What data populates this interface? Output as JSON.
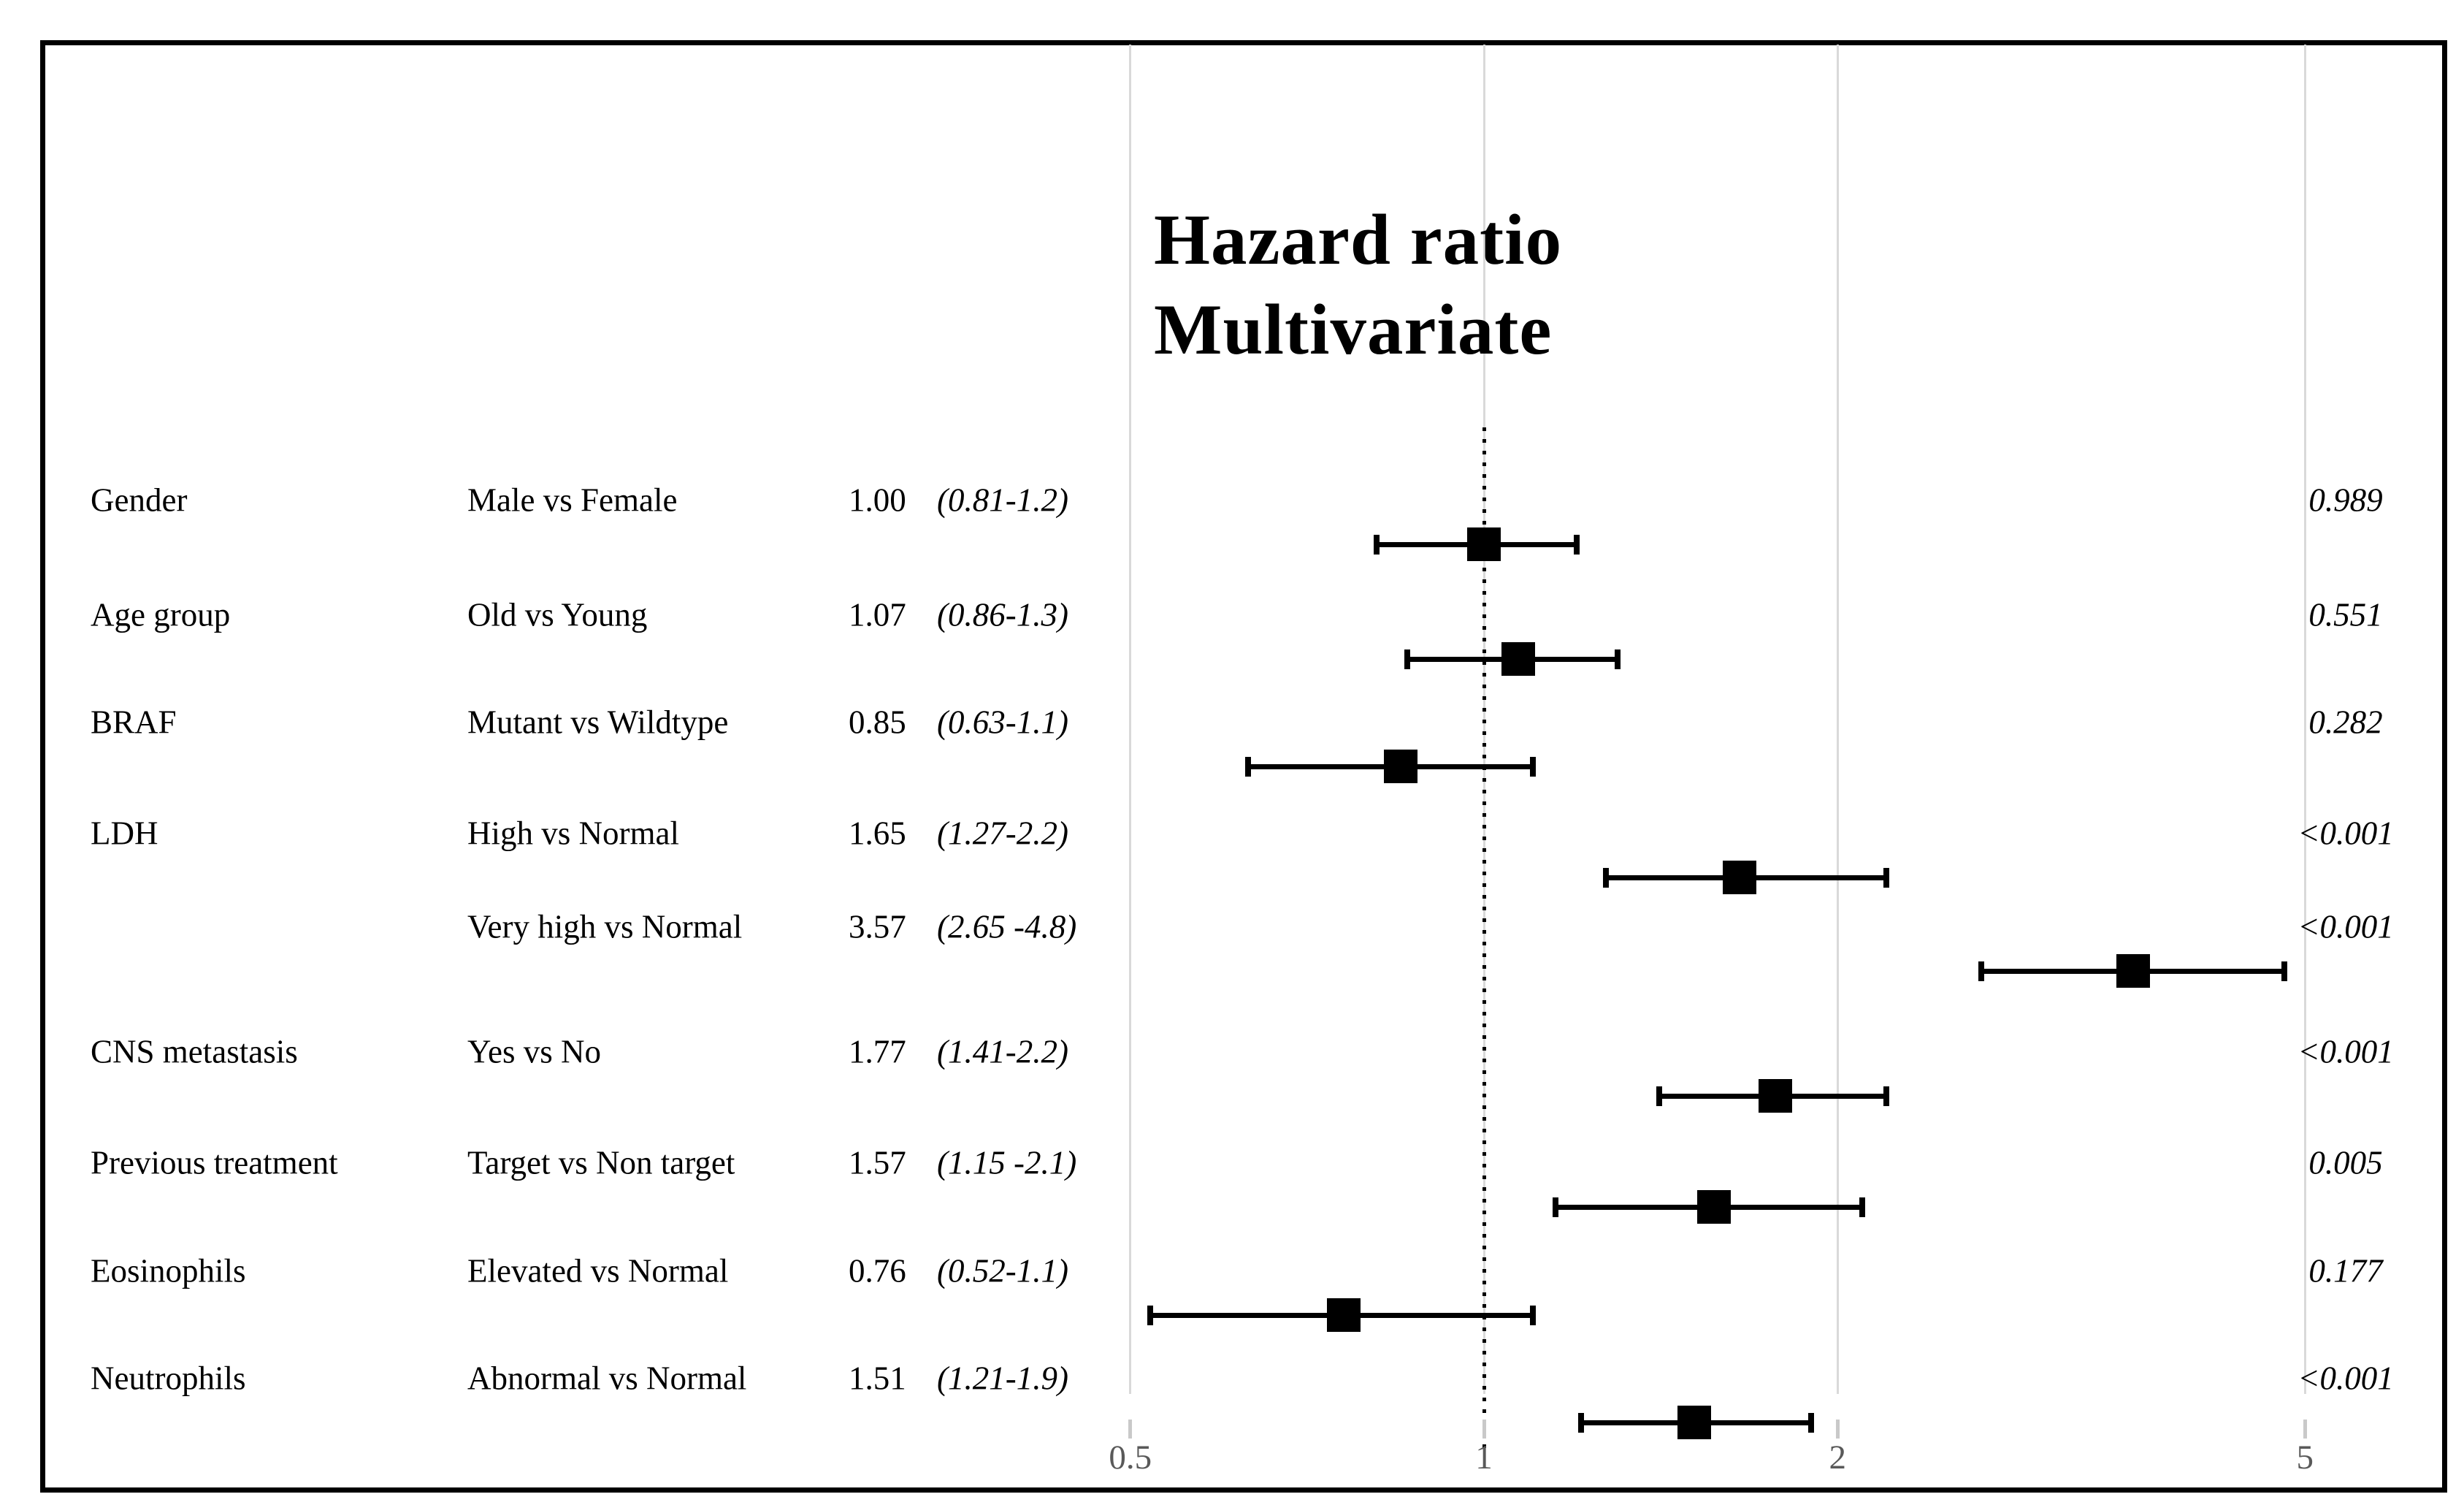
{
  "title": {
    "line1": "Hazard ratio",
    "line2": "Multivariate"
  },
  "chart_data": {
    "type": "forest",
    "title": "Hazard ratio Multivariate",
    "x_axis": {
      "scale": "log",
      "ticks": [
        "0.5",
        "1",
        "2",
        "5"
      ],
      "tick_values": [
        0.5,
        1,
        2,
        5
      ],
      "range": [
        0.45,
        5.6
      ],
      "reference_line": 1,
      "gridlines": true,
      "gridline_color": "#d9d9d9",
      "label_color": "#595959"
    },
    "marker": {
      "shape": "square",
      "color": "#000000"
    },
    "rows": [
      {
        "variable": "Gender",
        "comparison": "Male vs Female",
        "estimate": "1.00",
        "hr": 1.0,
        "ci": "(0.81-1.2)",
        "ci_low": 0.81,
        "ci_high": 1.2,
        "p": "0.989"
      },
      {
        "variable": "Age group",
        "comparison": "Old vs Young",
        "estimate": "1.07",
        "hr": 1.07,
        "ci": "(0.86-1.3)",
        "ci_low": 0.86,
        "ci_high": 1.3,
        "p": "0.551"
      },
      {
        "variable": "BRAF",
        "comparison": "Mutant vs Wildtype",
        "estimate": "0.85",
        "hr": 0.85,
        "ci": "(0.63-1.1)",
        "ci_low": 0.63,
        "ci_high": 1.1,
        "p": "0.282"
      },
      {
        "variable": "LDH",
        "comparison": "High vs Normal",
        "estimate": "1.65",
        "hr": 1.65,
        "ci": "(1.27-2.2)",
        "ci_low": 1.27,
        "ci_high": 2.2,
        "p": "<0.001"
      },
      {
        "variable": "",
        "comparison": "Very high vs Normal",
        "estimate": "3.57",
        "hr": 3.57,
        "ci": "(2.65 -4.8)",
        "ci_low": 2.65,
        "ci_high": 4.8,
        "p": "<0.001"
      },
      {
        "variable": "CNS metastasis",
        "comparison": "Yes vs No",
        "estimate": "1.77",
        "hr": 1.77,
        "ci": "(1.41-2.2)",
        "ci_low": 1.41,
        "ci_high": 2.2,
        "p": "<0.001"
      },
      {
        "variable": "Previous treatment",
        "comparison": "Target vs Non target",
        "estimate": "1.57",
        "hr": 1.57,
        "ci": "(1.15 -2.1)",
        "ci_low": 1.15,
        "ci_high": 2.1,
        "p": "0.005"
      },
      {
        "variable": "Eosinophils",
        "comparison": "Elevated vs Normal",
        "estimate": "0.76",
        "hr": 0.76,
        "ci": "(0.52-1.1)",
        "ci_low": 0.52,
        "ci_high": 1.1,
        "p": "0.177"
      },
      {
        "variable": "Neutrophils",
        "comparison": "Abnormal vs Normal",
        "estimate": "1.51",
        "hr": 1.51,
        "ci": "(1.21-1.9)",
        "ci_low": 1.21,
        "ci_high": 1.9,
        "p": "<0.001"
      }
    ]
  }
}
